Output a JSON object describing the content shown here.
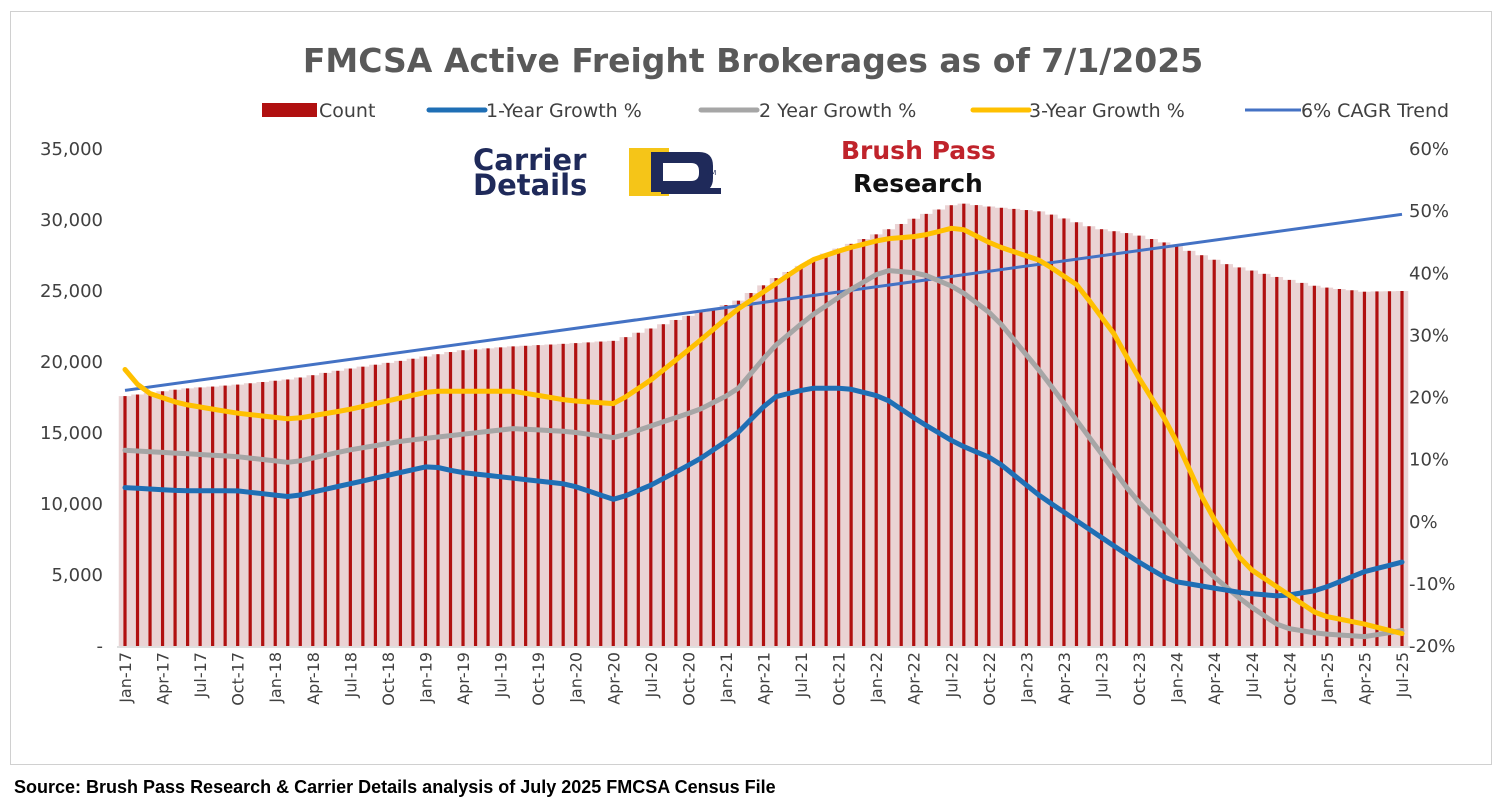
{
  "chart_data": {
    "type": "bar+line",
    "title": "FMCSA Active Freight Brokerages as of 7/1/2025",
    "legend": [
      {
        "name": "Count",
        "color": "#b01010",
        "kind": "bar"
      },
      {
        "name": "1-Year Growth %",
        "color": "#1f6fb5",
        "kind": "line"
      },
      {
        "name": "2 Year Growth %",
        "color": "#a6a6a6",
        "kind": "line"
      },
      {
        "name": "3-Year Growth %",
        "color": "#ffc000",
        "kind": "line"
      },
      {
        "name": "6% CAGR Trend",
        "color": "#4472c4",
        "kind": "line"
      }
    ],
    "left_axis": {
      "min": 0,
      "max": 35000,
      "ticks": [
        "-",
        "5,000",
        "10,000",
        "15,000",
        "20,000",
        "25,000",
        "30,000",
        "35,000"
      ]
    },
    "right_axis": {
      "min": -20,
      "max": 60,
      "ticks": [
        "-20%",
        "-10%",
        "0%",
        "10%",
        "20%",
        "30%",
        "40%",
        "50%",
        "60%"
      ]
    },
    "x_tick_labels": [
      "Jan-17",
      "Apr-17",
      "Jul-17",
      "Oct-17",
      "Jan-18",
      "Apr-18",
      "Jul-18",
      "Oct-18",
      "Jan-19",
      "Apr-19",
      "Jul-19",
      "Oct-19",
      "Jan-20",
      "Apr-20",
      "Jul-20",
      "Oct-20",
      "Jan-21",
      "Apr-21",
      "Jul-21",
      "Oct-21",
      "Jan-22",
      "Apr-22",
      "Jul-22",
      "Oct-22",
      "Jan-23",
      "Apr-23",
      "Jul-23",
      "Oct-23",
      "Jan-24",
      "Apr-24",
      "Jul-24",
      "Oct-24",
      "Jan-25",
      "Apr-25",
      "Jul-25"
    ],
    "months": 103,
    "count_anchors": [
      [
        0,
        17600
      ],
      [
        6,
        18100
      ],
      [
        12,
        18400
      ],
      [
        18,
        18800
      ],
      [
        24,
        19500
      ],
      [
        30,
        20100
      ],
      [
        36,
        20800
      ],
      [
        42,
        21100
      ],
      [
        48,
        21300
      ],
      [
        53,
        21500
      ],
      [
        57,
        22400
      ],
      [
        62,
        23500
      ],
      [
        66,
        24200
      ],
      [
        70,
        25800
      ],
      [
        76,
        27700
      ],
      [
        82,
        29200
      ],
      [
        86,
        30300
      ],
      [
        90,
        31200
      ],
      [
        94,
        30900
      ],
      [
        99,
        30600
      ],
      [
        105,
        29400
      ],
      [
        109,
        29000
      ],
      [
        113,
        28300
      ],
      [
        119,
        26900
      ],
      [
        125,
        25900
      ],
      [
        129,
        25300
      ],
      [
        134,
        24950
      ],
      [
        138,
        25000
      ]
    ],
    "growth_1yr_anchors": [
      [
        0,
        5.5
      ],
      [
        6,
        5
      ],
      [
        12,
        5
      ],
      [
        18,
        4
      ],
      [
        24,
        6
      ],
      [
        30,
        8
      ],
      [
        33,
        9
      ],
      [
        36,
        8
      ],
      [
        42,
        7
      ],
      [
        48,
        6
      ],
      [
        53,
        3.5
      ],
      [
        57,
        6
      ],
      [
        62,
        10
      ],
      [
        66,
        14
      ],
      [
        70,
        20
      ],
      [
        74,
        21.5
      ],
      [
        78,
        21.5
      ],
      [
        82,
        20
      ],
      [
        86,
        16
      ],
      [
        90,
        12.5
      ],
      [
        94,
        10
      ],
      [
        99,
        4
      ],
      [
        105,
        -2
      ],
      [
        109,
        -6
      ],
      [
        113,
        -9.5
      ],
      [
        117,
        -10.5
      ],
      [
        121,
        -11.5
      ],
      [
        125,
        -12
      ],
      [
        129,
        -11
      ],
      [
        134,
        -8
      ],
      [
        138,
        -6.5
      ]
    ],
    "growth_2yr_anchors": [
      [
        0,
        11.5
      ],
      [
        6,
        11
      ],
      [
        12,
        10.5
      ],
      [
        18,
        9.5
      ],
      [
        24,
        11.5
      ],
      [
        30,
        13
      ],
      [
        36,
        14
      ],
      [
        42,
        15
      ],
      [
        48,
        14.5
      ],
      [
        53,
        13.5
      ],
      [
        57,
        15.5
      ],
      [
        62,
        18
      ],
      [
        66,
        21
      ],
      [
        70,
        28
      ],
      [
        74,
        33
      ],
      [
        78,
        37
      ],
      [
        82,
        40.5
      ],
      [
        86,
        40
      ],
      [
        90,
        37.5
      ],
      [
        94,
        33
      ],
      [
        99,
        24
      ],
      [
        105,
        12
      ],
      [
        109,
        4
      ],
      [
        113,
        -2
      ],
      [
        117,
        -8
      ],
      [
        121,
        -13
      ],
      [
        125,
        -17
      ],
      [
        129,
        -18
      ],
      [
        134,
        -18.5
      ],
      [
        138,
        -17.5
      ]
    ],
    "growth_3yr_anchors": [
      [
        0,
        24.5
      ],
      [
        2,
        21
      ],
      [
        6,
        19
      ],
      [
        12,
        17.5
      ],
      [
        18,
        16.5
      ],
      [
        24,
        18
      ],
      [
        30,
        20
      ],
      [
        33,
        21
      ],
      [
        36,
        21
      ],
      [
        42,
        21
      ],
      [
        48,
        19.5
      ],
      [
        53,
        19
      ],
      [
        57,
        23
      ],
      [
        62,
        29
      ],
      [
        66,
        34
      ],
      [
        70,
        38
      ],
      [
        74,
        42
      ],
      [
        78,
        44
      ],
      [
        82,
        45.5
      ],
      [
        86,
        46
      ],
      [
        90,
        47.5
      ],
      [
        94,
        44.5
      ],
      [
        99,
        42
      ],
      [
        103,
        38
      ],
      [
        107,
        30
      ],
      [
        109,
        24.5
      ],
      [
        113,
        15
      ],
      [
        117,
        2
      ],
      [
        121,
        -7
      ],
      [
        125,
        -11
      ],
      [
        129,
        -15
      ],
      [
        134,
        -16.5
      ],
      [
        138,
        -18
      ]
    ],
    "cagr_trend": {
      "start_value": 18000,
      "end_value": 30400,
      "rate": "6%"
    },
    "logos": {
      "carrier_details": {
        "line1": "Carrier",
        "line2": "Details",
        "tm": "TM"
      },
      "brush_pass": {
        "line1": "Brush Pass",
        "line2": "Research"
      }
    }
  },
  "source": "Source: Brush Pass Research & Carrier Details analysis of July 2025 FMCSA Census File"
}
